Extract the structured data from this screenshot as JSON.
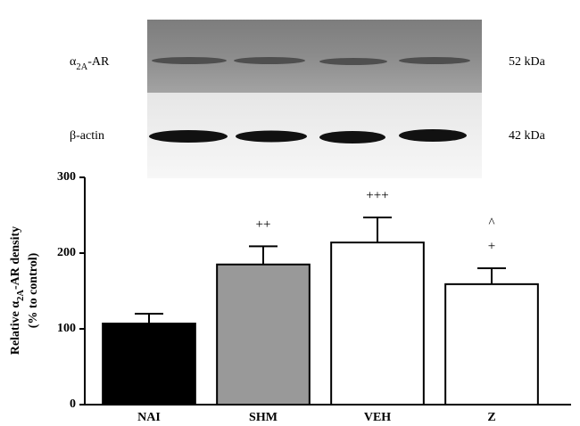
{
  "blot": {
    "rows": [
      {
        "label": [
          "α",
          "2A",
          "-AR"
        ],
        "size": "52 kDa"
      },
      {
        "label": [
          "β-actin"
        ],
        "size": "42 kDa"
      }
    ]
  },
  "chart_data": {
    "type": "bar",
    "ylabel": [
      [
        "Relative ",
        "α",
        "2A",
        "-AR density"
      ],
      [
        "(% to control)"
      ]
    ],
    "categories": [
      "NAI",
      "SHM",
      "VEH",
      "Z"
    ],
    "values": [
      107,
      185,
      214,
      159
    ],
    "errors": [
      13,
      24,
      33,
      21
    ],
    "colors": [
      "#000000",
      "#999999",
      "#ffffff",
      "#ffffff"
    ],
    "annotations": [
      {
        "category": "SHM",
        "text": [
          "++"
        ]
      },
      {
        "category": "VEH",
        "text": [
          "+++"
        ]
      },
      {
        "category": "Z",
        "text": [
          "^",
          "+"
        ]
      }
    ],
    "ylim": [
      0,
      300
    ],
    "yticks": [
      0,
      100,
      200,
      300
    ]
  }
}
